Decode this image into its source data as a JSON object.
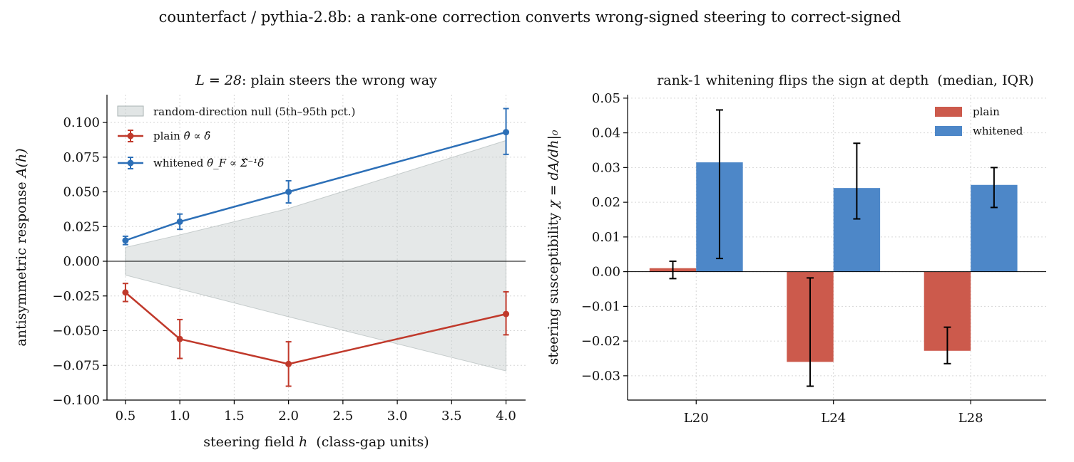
{
  "suptitle": "counterfact / pythia-2.8b: a rank-one correction converts wrong-signed steering to correct-signed",
  "colors": {
    "plain": "#c0392b",
    "whitened": "#2c6fb7",
    "plain_bar": "#cc5a4c",
    "whitened_bar": "#4d87c8",
    "null_band": "#bdc6c6"
  },
  "chart_data": [
    {
      "type": "line",
      "title": "L = 28: plain steers the wrong way",
      "title_math": "L = 28",
      "title_rest": ": plain steers the wrong way",
      "xlabel": "steering field h  (class-gap units)",
      "xlabel_pre": "steering field ",
      "xlabel_var": "h",
      "xlabel_post": "  (class-gap units)",
      "ylabel": "antisymmetric response A(h)",
      "ylabel_pre": "antisymmetric response ",
      "ylabel_var": "A(h)",
      "xlim": [
        0.33,
        4.18
      ],
      "ylim": [
        -0.1,
        0.12
      ],
      "xticks": [
        "0.5",
        "1.0",
        "1.5",
        "2.0",
        "2.5",
        "3.0",
        "3.5",
        "4.0"
      ],
      "yticks": [
        "−0.100",
        "−0.075",
        "−0.050",
        "−0.025",
        "0.000",
        "0.025",
        "0.050",
        "0.075",
        "0.100"
      ],
      "grid": true,
      "legend_position": "top-left",
      "null_band": {
        "label": "random-direction null (5th–95th pct.)",
        "x": [
          0.5,
          1.0,
          2.0,
          4.0
        ],
        "upper": [
          0.01,
          0.019,
          0.038,
          0.087
        ],
        "lower": [
          -0.01,
          -0.02,
          -0.04,
          -0.079
        ]
      },
      "series": [
        {
          "name": "plain θ̂ ∝ δ̂",
          "label_text": "plain",
          "label_math": "θ̂ ∝ δ̂",
          "x": [
            0.5,
            1.0,
            2.0,
            4.0
          ],
          "y": [
            -0.0225,
            -0.056,
            -0.074,
            -0.038
          ],
          "err_low": [
            -0.029,
            -0.07,
            -0.09,
            -0.053
          ],
          "err_high": [
            -0.016,
            -0.042,
            -0.058,
            -0.022
          ]
        },
        {
          "name": "whitened θ̂_F ∝ Σ̂⁻¹δ̂",
          "label_text": "whitened",
          "label_math": "θ̂_F ∝ Σ̂⁻¹δ̂",
          "x": [
            0.5,
            1.0,
            2.0,
            4.0
          ],
          "y": [
            0.015,
            0.0285,
            0.05,
            0.093
          ],
          "err_low": [
            0.012,
            0.023,
            0.042,
            0.077
          ],
          "err_high": [
            0.018,
            0.034,
            0.058,
            0.11
          ]
        }
      ]
    },
    {
      "type": "bar",
      "title": "rank-1 whitening flips the sign at depth  (median, IQR)",
      "ylabel": "steering susceptibility χ = dA/dh|₀",
      "ylabel_pre": "steering susceptibility ",
      "ylabel_var": "χ = dA/dh|₀",
      "categories": [
        "L20",
        "L24",
        "L28"
      ],
      "ylim": [
        -0.037,
        0.051
      ],
      "yticks": [
        "−0.03",
        "−0.02",
        "−0.01",
        "0.00",
        "0.01",
        "0.02",
        "0.03",
        "0.04",
        "0.05"
      ],
      "grid": true,
      "legend_position": "top-right",
      "series": [
        {
          "name": "plain",
          "values": [
            0.001,
            -0.026,
            -0.0228
          ],
          "err_low": [
            -0.002,
            -0.033,
            -0.0265
          ],
          "err_high": [
            0.003,
            -0.0018,
            -0.016
          ]
        },
        {
          "name": "whitened",
          "values": [
            0.0315,
            0.0241,
            0.025
          ],
          "err_low": [
            0.0038,
            0.0152,
            0.0185
          ],
          "err_high": [
            0.0466,
            0.037,
            0.03
          ]
        }
      ]
    }
  ]
}
